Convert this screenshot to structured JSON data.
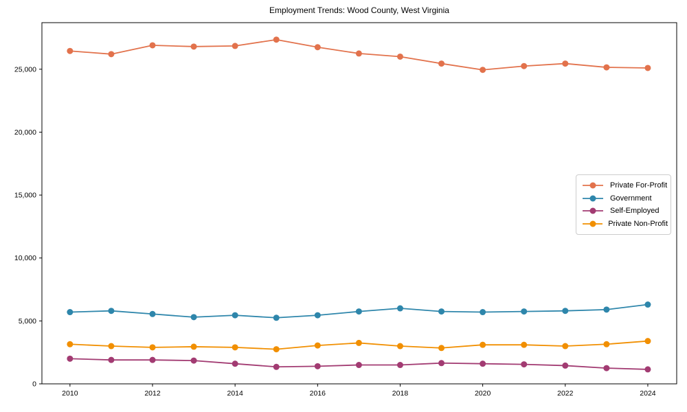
{
  "chart_data": {
    "type": "line",
    "title": "Employment Trends: Wood County, West Virginia",
    "x": [
      2010,
      2011,
      2012,
      2013,
      2014,
      2015,
      2016,
      2017,
      2018,
      2019,
      2020,
      2021,
      2022,
      2023,
      2024
    ],
    "series": [
      {
        "name": "Private For-Profit",
        "color": "#E2724C",
        "values": [
          26450,
          26200,
          26900,
          26800,
          26850,
          27350,
          26750,
          26250,
          26000,
          25450,
          24950,
          25250,
          25450,
          25150,
          25100
        ]
      },
      {
        "name": "Government",
        "color": "#2E86AB",
        "values": [
          5700,
          5800,
          5550,
          5300,
          5450,
          5250,
          5450,
          5750,
          6000,
          5750,
          5700,
          5750,
          5800,
          5900,
          6300
        ]
      },
      {
        "name": "Self-Employed",
        "color": "#A23B72",
        "values": [
          2000,
          1900,
          1900,
          1850,
          1600,
          1350,
          1400,
          1500,
          1500,
          1650,
          1600,
          1550,
          1450,
          1250,
          1150
        ]
      },
      {
        "name": "Private Non-Profit",
        "color": "#F18F01",
        "values": [
          3150,
          3000,
          2900,
          2950,
          2900,
          2750,
          3050,
          3250,
          3000,
          2850,
          3100,
          3100,
          3000,
          3150,
          3400
        ]
      }
    ],
    "xtick_values": [
      2010,
      2012,
      2014,
      2016,
      2018,
      2020,
      2022,
      2024
    ],
    "xtick_labels": [
      "2010",
      "2012",
      "2014",
      "2016",
      "2018",
      "2020",
      "2022",
      "2024"
    ],
    "ytick_values": [
      0,
      5000,
      10000,
      15000,
      20000,
      25000
    ],
    "ytick_labels": [
      "0",
      "5,000",
      "10,000",
      "15,000",
      "20,000",
      "25,000"
    ],
    "xlim": [
      2009.32,
      2024.7
    ],
    "ylim": [
      0,
      28700
    ],
    "grid": false,
    "legend_position": "center right",
    "axis_color": "#000000",
    "text_color": "#000000",
    "background": "#ffffff"
  }
}
